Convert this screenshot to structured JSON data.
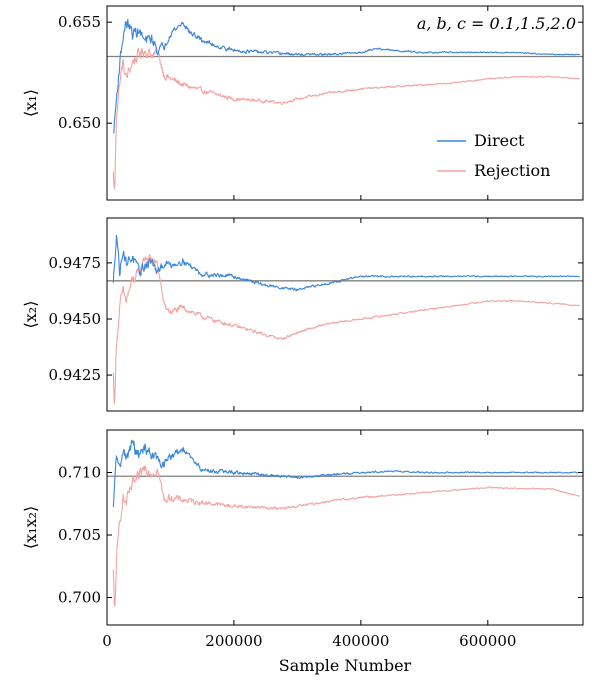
{
  "chart_data": {
    "type": "line",
    "shared_x": {
      "label": "Sample Number",
      "lim": [
        0,
        750000
      ],
      "ticks": [
        0,
        200000,
        400000,
        600000
      ],
      "tick_labels": [
        "0",
        "200000",
        "400000",
        "600000"
      ]
    },
    "colors": {
      "Direct": "#3a86d9",
      "Rejection": "#f4a3a3",
      "reference": "#808080"
    },
    "annotation": "a, b, c = 0.1,1.5,2.0",
    "legend": {
      "placement": "right",
      "entries": [
        "Direct",
        "Rejection"
      ]
    },
    "panels": [
      {
        "ylabel": "⟨x₁⟩",
        "ylim": [
          0.6462,
          0.6558
        ],
        "yticks": [
          0.65,
          0.655
        ],
        "ytick_labels": [
          "0.650",
          "0.655"
        ],
        "reference": 0.6533,
        "series": [
          {
            "name": "Direct",
            "x": [
              10000,
              15000,
              20000,
              25000,
              30000,
              35000,
              40000,
              50000,
              60000,
              70000,
              80000,
              90000,
              100000,
              110000,
              120000,
              130000,
              150000,
              175000,
              200000,
              250000,
              300000,
              350000,
              400000,
              425000,
              450000,
              500000,
              550000,
              600000,
              650000,
              700000,
              745000
            ],
            "y": [
              0.6494,
              0.6512,
              0.653,
              0.6542,
              0.655,
              0.6548,
              0.6544,
              0.6546,
              0.654,
              0.6542,
              0.6536,
              0.6538,
              0.6545,
              0.6547,
              0.655,
              0.6545,
              0.6541,
              0.6538,
              0.6536,
              0.6535,
              0.6534,
              0.6534,
              0.6535,
              0.6537,
              0.6536,
              0.6535,
              0.6535,
              0.6535,
              0.6535,
              0.6534,
              0.6534
            ]
          },
          {
            "name": "Rejection",
            "x": [
              10000,
              12000,
              15000,
              20000,
              25000,
              30000,
              40000,
              50000,
              60000,
              70000,
              80000,
              90000,
              100000,
              120000,
              150000,
              200000,
              250000,
              275000,
              300000,
              350000,
              400000,
              450000,
              500000,
              550000,
              600000,
              650000,
              700000,
              745000
            ],
            "y": [
              0.6475,
              0.6465,
              0.6505,
              0.652,
              0.653,
              0.6522,
              0.653,
              0.6534,
              0.6536,
              0.6534,
              0.6535,
              0.6524,
              0.6522,
              0.6519,
              0.6516,
              0.6512,
              0.6511,
              0.651,
              0.6512,
              0.6515,
              0.6517,
              0.6518,
              0.6519,
              0.652,
              0.6522,
              0.6523,
              0.6523,
              0.6522
            ]
          }
        ]
      },
      {
        "ylabel": "⟨x₂⟩",
        "ylim": [
          0.9409,
          0.9495
        ],
        "yticks": [
          0.9425,
          0.945,
          0.9475
        ],
        "ytick_labels": [
          "0.9425",
          "0.9450",
          "0.9475"
        ],
        "reference": 0.9467,
        "series": [
          {
            "name": "Direct",
            "x": [
              10000,
              15000,
              20000,
              25000,
              30000,
              40000,
              50000,
              60000,
              70000,
              80000,
              90000,
              100000,
              120000,
              150000,
              200000,
              250000,
              300000,
              350000,
              400000,
              450000,
              500000,
              600000,
              700000,
              745000
            ],
            "y": [
              0.9465,
              0.949,
              0.947,
              0.9482,
              0.9475,
              0.9478,
              0.947,
              0.9474,
              0.9476,
              0.947,
              0.9475,
              0.9474,
              0.9476,
              0.947,
              0.9469,
              0.9465,
              0.9463,
              0.9466,
              0.9469,
              0.9469,
              0.9469,
              0.9469,
              0.9469,
              0.9469
            ]
          },
          {
            "name": "Rejection",
            "x": [
              10000,
              12000,
              15000,
              20000,
              25000,
              30000,
              40000,
              50000,
              60000,
              70000,
              80000,
              90000,
              100000,
              120000,
              150000,
              200000,
              250000,
              275000,
              300000,
              350000,
              400000,
              450000,
              500000,
              550000,
              600000,
              650000,
              700000,
              745000
            ],
            "y": [
              0.9425,
              0.9412,
              0.944,
              0.9455,
              0.9462,
              0.9458,
              0.9467,
              0.947,
              0.9478,
              0.9476,
              0.9474,
              0.9456,
              0.9453,
              0.9455,
              0.9451,
              0.9447,
              0.9443,
              0.9441,
              0.9444,
              0.9448,
              0.945,
              0.9452,
              0.9454,
              0.9456,
              0.9458,
              0.9458,
              0.9457,
              0.9456
            ]
          }
        ]
      },
      {
        "ylabel": "⟨x₁x₂⟩",
        "ylim": [
          0.6978,
          0.7134
        ],
        "yticks": [
          0.7,
          0.705,
          0.71
        ],
        "ytick_labels": [
          "0.700",
          "0.705",
          "0.710"
        ],
        "reference": 0.7097,
        "series": [
          {
            "name": "Direct",
            "x": [
              10000,
              15000,
              20000,
              25000,
              30000,
              40000,
              50000,
              60000,
              70000,
              80000,
              90000,
              100000,
              120000,
              150000,
              200000,
              250000,
              300000,
              350000,
              400000,
              450000,
              500000,
              600000,
              700000,
              745000
            ],
            "y": [
              0.707,
              0.7115,
              0.71,
              0.712,
              0.711,
              0.7124,
              0.7112,
              0.712,
              0.7115,
              0.711,
              0.7106,
              0.7113,
              0.7118,
              0.7102,
              0.71,
              0.7098,
              0.7096,
              0.7098,
              0.71,
              0.7101,
              0.71,
              0.71,
              0.71,
              0.71
            ]
          },
          {
            "name": "Rejection",
            "x": [
              10000,
              12000,
              15000,
              20000,
              25000,
              30000,
              40000,
              50000,
              60000,
              70000,
              80000,
              90000,
              100000,
              120000,
              150000,
              200000,
              250000,
              275000,
              300000,
              350000,
              400000,
              450000,
              500000,
              550000,
              600000,
              650000,
              700000,
              745000
            ],
            "y": [
              0.702,
              0.6985,
              0.703,
              0.706,
              0.708,
              0.7075,
              0.709,
              0.7095,
              0.7105,
              0.71,
              0.7102,
              0.7078,
              0.708,
              0.7078,
              0.7076,
              0.7073,
              0.7072,
              0.7071,
              0.7073,
              0.7077,
              0.708,
              0.7082,
              0.7084,
              0.7086,
              0.7088,
              0.7087,
              0.7087,
              0.7081
            ]
          }
        ]
      }
    ]
  }
}
